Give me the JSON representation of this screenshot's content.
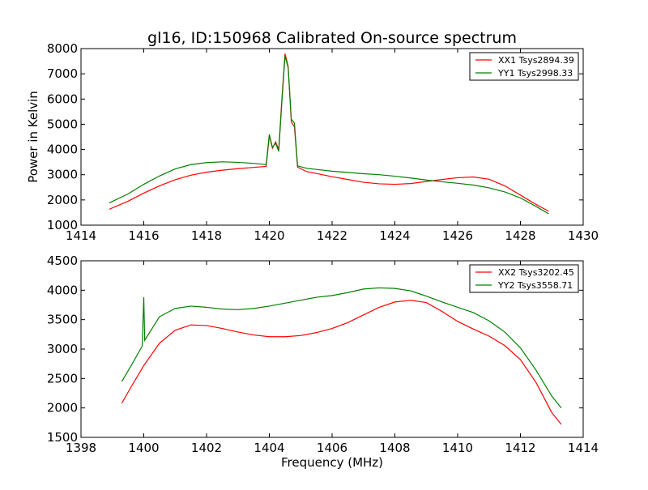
{
  "title": "gl16, ID:150968 Calibrated On-source spectrum",
  "colors": {
    "red": "#ff0000",
    "green": "#008000"
  },
  "chart_data": [
    {
      "type": "line",
      "title": "gl16, ID:150968 Calibrated On-source spectrum",
      "xlabel": "",
      "ylabel": "Power in Kelvin",
      "xlim": [
        1414,
        1430
      ],
      "ylim": [
        1000,
        8000
      ],
      "xticks": [
        1414,
        1416,
        1418,
        1420,
        1422,
        1424,
        1426,
        1428,
        1430
      ],
      "yticks": [
        1000,
        2000,
        3000,
        4000,
        5000,
        6000,
        7000,
        8000
      ],
      "legend_position": "top-right",
      "grid": false,
      "series": [
        {
          "name": "XX1 Tsys2894.39",
          "color": "#ff0000",
          "points": [
            [
              1414.9,
              1630
            ],
            [
              1415.5,
              1950
            ],
            [
              1416.0,
              2270
            ],
            [
              1416.5,
              2560
            ],
            [
              1417.0,
              2800
            ],
            [
              1417.5,
              2980
            ],
            [
              1418.0,
              3100
            ],
            [
              1418.5,
              3180
            ],
            [
              1419.0,
              3240
            ],
            [
              1419.5,
              3290
            ],
            [
              1419.9,
              3330
            ],
            [
              1420.0,
              4550
            ],
            [
              1420.1,
              4050
            ],
            [
              1420.2,
              4300
            ],
            [
              1420.3,
              4000
            ],
            [
              1420.4,
              6000
            ],
            [
              1420.5,
              7800
            ],
            [
              1420.6,
              7300
            ],
            [
              1420.7,
              5100
            ],
            [
              1420.8,
              4900
            ],
            [
              1420.9,
              3300
            ],
            [
              1421.2,
              3120
            ],
            [
              1421.5,
              3050
            ],
            [
              1422.0,
              2920
            ],
            [
              1422.5,
              2810
            ],
            [
              1423.0,
              2700
            ],
            [
              1423.5,
              2640
            ],
            [
              1424.0,
              2620
            ],
            [
              1424.5,
              2650
            ],
            [
              1425.0,
              2730
            ],
            [
              1425.5,
              2810
            ],
            [
              1426.0,
              2880
            ],
            [
              1426.5,
              2910
            ],
            [
              1427.0,
              2820
            ],
            [
              1427.5,
              2560
            ],
            [
              1428.0,
              2190
            ],
            [
              1428.5,
              1820
            ],
            [
              1428.9,
              1550
            ]
          ]
        },
        {
          "name": "YY1 Tsys2998.33",
          "color": "#008000",
          "points": [
            [
              1414.9,
              1880
            ],
            [
              1415.5,
              2240
            ],
            [
              1416.0,
              2620
            ],
            [
              1416.5,
              2950
            ],
            [
              1417.0,
              3230
            ],
            [
              1417.5,
              3400
            ],
            [
              1418.0,
              3480
            ],
            [
              1418.5,
              3510
            ],
            [
              1419.0,
              3490
            ],
            [
              1419.5,
              3450
            ],
            [
              1419.9,
              3400
            ],
            [
              1420.0,
              4600
            ],
            [
              1420.1,
              4080
            ],
            [
              1420.2,
              4250
            ],
            [
              1420.3,
              3920
            ],
            [
              1420.4,
              5900
            ],
            [
              1420.5,
              7700
            ],
            [
              1420.6,
              7250
            ],
            [
              1420.7,
              5200
            ],
            [
              1420.8,
              5050
            ],
            [
              1420.9,
              3350
            ],
            [
              1421.2,
              3250
            ],
            [
              1421.5,
              3210
            ],
            [
              1422.0,
              3140
            ],
            [
              1422.5,
              3090
            ],
            [
              1423.0,
              3040
            ],
            [
              1423.5,
              3000
            ],
            [
              1424.0,
              2940
            ],
            [
              1424.5,
              2870
            ],
            [
              1425.0,
              2790
            ],
            [
              1425.5,
              2720
            ],
            [
              1426.0,
              2660
            ],
            [
              1426.5,
              2590
            ],
            [
              1427.0,
              2480
            ],
            [
              1427.5,
              2320
            ],
            [
              1428.0,
              2080
            ],
            [
              1428.5,
              1740
            ],
            [
              1428.9,
              1450
            ]
          ]
        }
      ]
    },
    {
      "type": "line",
      "title": "",
      "xlabel": "Frequency (MHz)",
      "ylabel": "",
      "xlim": [
        1398,
        1414
      ],
      "ylim": [
        1500,
        4500
      ],
      "xticks": [
        1398,
        1400,
        1402,
        1404,
        1406,
        1408,
        1410,
        1412,
        1414
      ],
      "yticks": [
        1500,
        2000,
        2500,
        3000,
        3500,
        4000,
        4500
      ],
      "legend_position": "top-right",
      "grid": false,
      "series": [
        {
          "name": "XX2 Tsys3202.45",
          "color": "#ff0000",
          "points": [
            [
              1399.3,
              2080
            ],
            [
              1399.6,
              2360
            ],
            [
              1400.0,
              2720
            ],
            [
              1400.5,
              3100
            ],
            [
              1401.0,
              3320
            ],
            [
              1401.5,
              3410
            ],
            [
              1402.0,
              3400
            ],
            [
              1402.5,
              3350
            ],
            [
              1403.0,
              3290
            ],
            [
              1403.5,
              3240
            ],
            [
              1404.0,
              3210
            ],
            [
              1404.5,
              3210
            ],
            [
              1405.0,
              3230
            ],
            [
              1405.5,
              3280
            ],
            [
              1406.0,
              3350
            ],
            [
              1406.5,
              3450
            ],
            [
              1407.0,
              3580
            ],
            [
              1407.5,
              3710
            ],
            [
              1408.0,
              3800
            ],
            [
              1408.5,
              3830
            ],
            [
              1409.0,
              3790
            ],
            [
              1409.5,
              3640
            ],
            [
              1410.0,
              3470
            ],
            [
              1410.5,
              3340
            ],
            [
              1411.0,
              3220
            ],
            [
              1411.5,
              3060
            ],
            [
              1412.0,
              2820
            ],
            [
              1412.5,
              2430
            ],
            [
              1413.0,
              1920
            ],
            [
              1413.3,
              1720
            ]
          ]
        },
        {
          "name": "YY2 Tsys3558.71",
          "color": "#008000",
          "points": [
            [
              1399.3,
              2450
            ],
            [
              1399.6,
              2720
            ],
            [
              1399.95,
              3050
            ],
            [
              1400.0,
              3880
            ],
            [
              1400.03,
              3150
            ],
            [
              1400.5,
              3550
            ],
            [
              1401.0,
              3690
            ],
            [
              1401.5,
              3730
            ],
            [
              1402.0,
              3710
            ],
            [
              1402.5,
              3680
            ],
            [
              1403.0,
              3670
            ],
            [
              1403.5,
              3690
            ],
            [
              1404.0,
              3730
            ],
            [
              1404.5,
              3780
            ],
            [
              1405.0,
              3830
            ],
            [
              1405.5,
              3880
            ],
            [
              1406.0,
              3910
            ],
            [
              1406.5,
              3960
            ],
            [
              1407.0,
              4020
            ],
            [
              1407.5,
              4040
            ],
            [
              1408.0,
              4030
            ],
            [
              1408.5,
              3990
            ],
            [
              1409.0,
              3900
            ],
            [
              1409.5,
              3800
            ],
            [
              1410.0,
              3710
            ],
            [
              1410.5,
              3620
            ],
            [
              1411.0,
              3480
            ],
            [
              1411.5,
              3290
            ],
            [
              1412.0,
              3020
            ],
            [
              1412.5,
              2640
            ],
            [
              1413.0,
              2200
            ],
            [
              1413.3,
              2000
            ]
          ]
        }
      ]
    }
  ]
}
